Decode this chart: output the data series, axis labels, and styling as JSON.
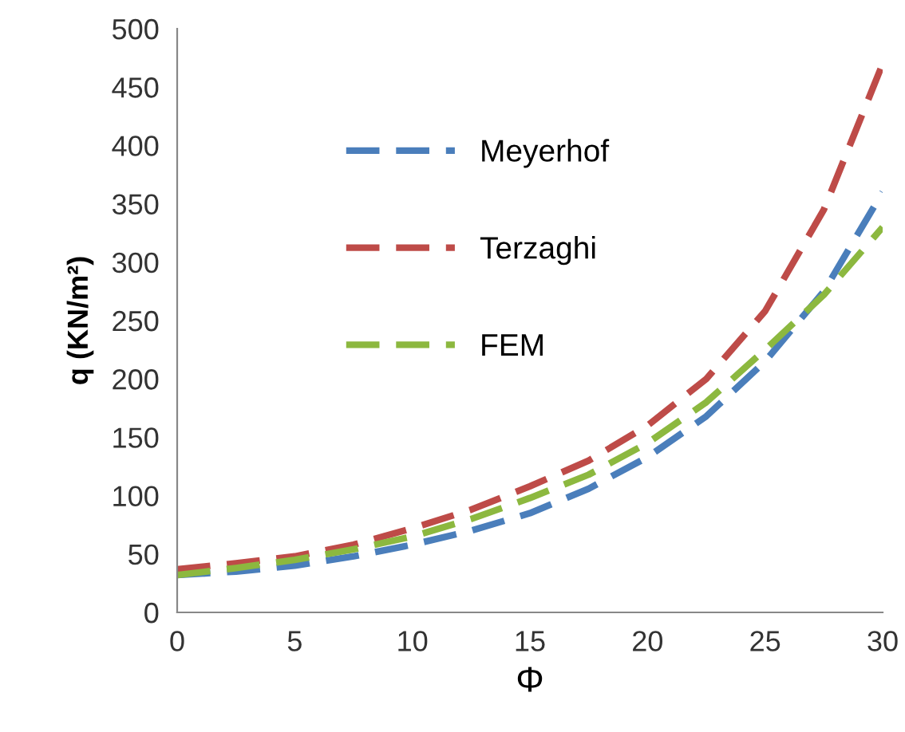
{
  "chart_data": {
    "type": "line",
    "xlabel": "Φ",
    "ylabel": "q (KN/m²)",
    "x": [
      0,
      2.5,
      5,
      7.5,
      10,
      12.5,
      15,
      17.5,
      20,
      22.5,
      25,
      27.5,
      30
    ],
    "series": [
      {
        "name": "Meyerhof",
        "color": "#4a7ebb",
        "values": [
          32,
          35,
          40,
          48,
          58,
          70,
          85,
          106,
          133,
          168,
          215,
          275,
          360
        ]
      },
      {
        "name": "Terzaghi",
        "color": "#be4b48",
        "values": [
          37,
          42,
          48,
          58,
          72,
          88,
          108,
          130,
          160,
          200,
          258,
          345,
          470
        ]
      },
      {
        "name": "FEM",
        "color": "#8cb83f",
        "values": [
          32,
          38,
          45,
          54,
          65,
          80,
          98,
          118,
          145,
          180,
          225,
          272,
          330
        ]
      }
    ],
    "xlim": [
      0,
      30
    ],
    "xticks": [
      0,
      5,
      10,
      15,
      20,
      25,
      30
    ],
    "ylim": [
      0,
      500
    ],
    "yticks": [
      0,
      50,
      100,
      150,
      200,
      250,
      300,
      350,
      400,
      450,
      500
    ],
    "grid": false,
    "legend": "left",
    "line_style": "dashed",
    "marker": "none"
  }
}
